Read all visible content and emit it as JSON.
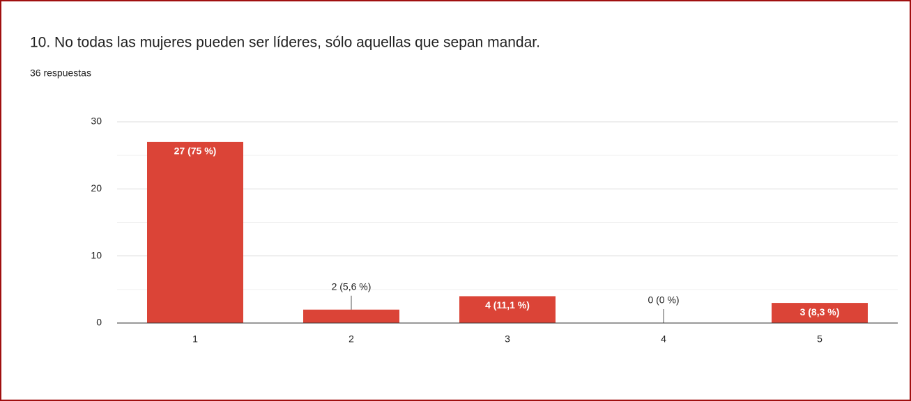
{
  "chart_data": {
    "type": "bar",
    "title": "10. No todas las mujeres pueden ser líderes, sólo aquellas que sepan mandar.",
    "subtitle": "36 respuestas",
    "categories": [
      "1",
      "2",
      "3",
      "4",
      "5"
    ],
    "values": [
      27,
      2,
      4,
      0,
      3
    ],
    "value_labels": [
      "27 (75 %)",
      "2 (5,6 %)",
      "4 (11,1 %)",
      "0 (0 %)",
      "3 (8,3 %)"
    ],
    "color": "#db4437",
    "ylim": [
      0,
      30
    ],
    "yticks": [
      0,
      10,
      20,
      30
    ],
    "minor_yticks": [
      5,
      15,
      25
    ],
    "grid": true
  }
}
